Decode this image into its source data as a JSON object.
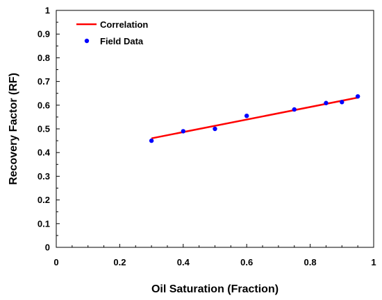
{
  "chart_data": {
    "type": "scatter",
    "xlabel": "Oil Saturation (Fraction)",
    "ylabel": "Recovery Factor (RF)",
    "xlim": [
      0,
      1
    ],
    "ylim": [
      0,
      1
    ],
    "x_ticks": [
      0,
      0.2,
      0.4,
      0.6,
      0.8,
      1
    ],
    "x_tick_labels": [
      "0",
      "0.2",
      "0.4",
      "0.6",
      "0.8",
      "1"
    ],
    "y_ticks": [
      0,
      0.1,
      0.2,
      0.3,
      0.4,
      0.5,
      0.6,
      0.7,
      0.8,
      0.9,
      1
    ],
    "y_tick_labels": [
      "0",
      "0.1",
      "0.2",
      "0.3",
      "0.4",
      "0.5",
      "0.6",
      "0.7",
      "0.8",
      "0.9",
      "1"
    ],
    "grid": false,
    "legend_position": "top-left",
    "series": [
      {
        "name": "Correlation",
        "kind": "line",
        "color": "#ff0000",
        "x": [
          0.3,
          0.95
        ],
        "y": [
          0.46,
          0.632
        ]
      },
      {
        "name": "Field Data",
        "kind": "scatter",
        "color": "#0000ff",
        "x": [
          0.3,
          0.4,
          0.5,
          0.6,
          0.75,
          0.85,
          0.9,
          0.95
        ],
        "y": [
          0.45,
          0.49,
          0.5,
          0.555,
          0.582,
          0.609,
          0.613,
          0.637
        ]
      }
    ]
  }
}
